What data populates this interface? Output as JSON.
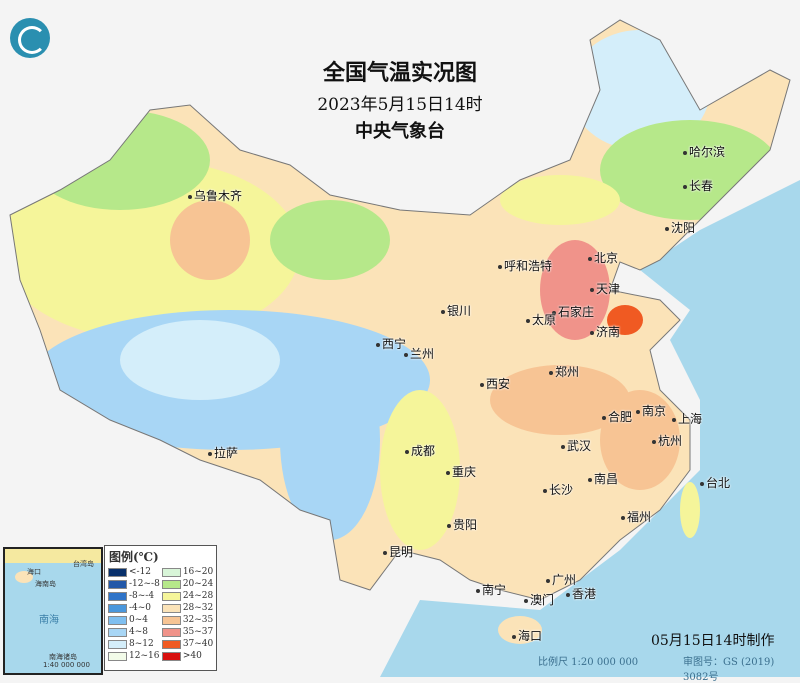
{
  "title": "全国气温实况图",
  "datetime": "2023年5月15日14时",
  "agency": "中央气象台",
  "made_time": "05月15日14时制作",
  "scale": "比例尺 1:20 000 000",
  "map_approval": "审图号：GS (2019) 3082号",
  "inset": {
    "sea": "南海",
    "scale": "1:40 000 000",
    "labels": [
      "海口",
      "海南岛",
      "台湾岛",
      "南海诸岛"
    ]
  },
  "legend": {
    "title": "图例(℃)",
    "items": [
      {
        "label": "<-12",
        "color": "#08306b"
      },
      {
        "label": "-12~-8",
        "color": "#2358a8"
      },
      {
        "label": "-8~-4",
        "color": "#2f74c8"
      },
      {
        "label": "-4~0",
        "color": "#4a97dc"
      },
      {
        "label": "0~4",
        "color": "#7fbff0"
      },
      {
        "label": "4~8",
        "color": "#a8d6f5"
      },
      {
        "label": "8~12",
        "color": "#d4eefa"
      },
      {
        "label": "12~16",
        "color": "#f2fbe9"
      },
      {
        "label": "16~20",
        "color": "#d8f5d8"
      },
      {
        "label": "20~24",
        "color": "#b6e88a"
      },
      {
        "label": "24~28",
        "color": "#f5f59a"
      },
      {
        "label": "28~32",
        "color": "#fbe3b8"
      },
      {
        "label": "32~35",
        "color": "#f7c494"
      },
      {
        "label": "35~37",
        "color": "#f0938a"
      },
      {
        "label": "37~40",
        "color": "#f05a22"
      },
      {
        "label": ">40",
        "color": "#d8100e"
      }
    ]
  },
  "cities": [
    "乌鲁木齐",
    "哈尔滨",
    "长春",
    "沈阳",
    "呼和浩特",
    "北京",
    "天津",
    "石家庄",
    "太原",
    "济南",
    "银川",
    "西宁",
    "兰州",
    "郑州",
    "西安",
    "合肥",
    "南京",
    "上海",
    "杭州",
    "拉萨",
    "成都",
    "武汉",
    "重庆",
    "南昌",
    "长沙",
    "贵阳",
    "福州",
    "台北",
    "昆明",
    "南宁",
    "广州",
    "澳门",
    "香港",
    "海口"
  ]
}
